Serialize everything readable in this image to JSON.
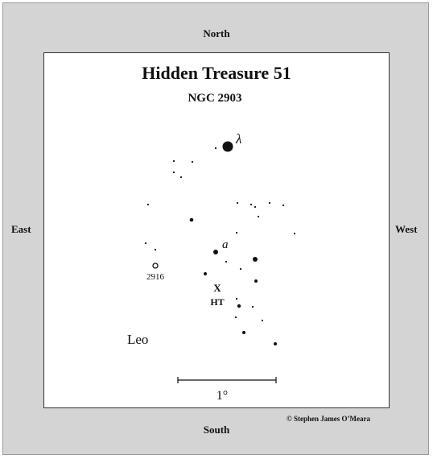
{
  "compass": {
    "north": "North",
    "south": "South",
    "east": "East",
    "west": "West"
  },
  "chart": {
    "title": "Hidden Treasure 51",
    "subtitle": "NGC 2903",
    "constellation": "Leo",
    "scale_label": "1°",
    "copyright": "© Stephen James O’Meara"
  },
  "labels": {
    "lambda": "λ",
    "star_a": "a",
    "galaxy_marker": "X",
    "galaxy_label": "HT",
    "ngc2916": "2916"
  },
  "colors": {
    "frame": "#d4d4d4",
    "ink": "#111111"
  }
}
